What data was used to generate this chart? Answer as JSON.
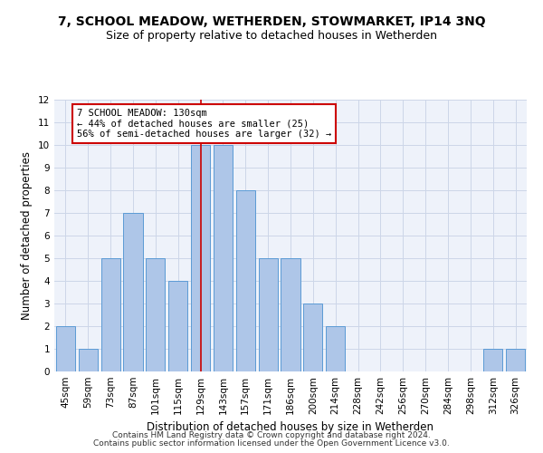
{
  "title": "7, SCHOOL MEADOW, WETHERDEN, STOWMARKET, IP14 3NQ",
  "subtitle": "Size of property relative to detached houses in Wetherden",
  "xlabel": "Distribution of detached houses by size in Wetherden",
  "ylabel": "Number of detached properties",
  "categories": [
    "45sqm",
    "59sqm",
    "73sqm",
    "87sqm",
    "101sqm",
    "115sqm",
    "129sqm",
    "143sqm",
    "157sqm",
    "171sqm",
    "186sqm",
    "200sqm",
    "214sqm",
    "228sqm",
    "242sqm",
    "256sqm",
    "270sqm",
    "284sqm",
    "298sqm",
    "312sqm",
    "326sqm"
  ],
  "values": [
    2,
    1,
    5,
    7,
    5,
    4,
    10,
    10,
    8,
    5,
    5,
    3,
    2,
    0,
    0,
    0,
    0,
    0,
    0,
    1,
    1
  ],
  "bar_color": "#aec6e8",
  "bar_edge_color": "#5b9bd5",
  "red_line_index": 6,
  "annotation_text": "7 SCHOOL MEADOW: 130sqm\n← 44% of detached houses are smaller (25)\n56% of semi-detached houses are larger (32) →",
  "annotation_box_color": "#ffffff",
  "annotation_box_edge_color": "#cc0000",
  "ylim": [
    0,
    12
  ],
  "yticks": [
    0,
    1,
    2,
    3,
    4,
    5,
    6,
    7,
    8,
    9,
    10,
    11,
    12
  ],
  "grid_color": "#ccd6e8",
  "background_color": "#eef2fa",
  "footer_line1": "Contains HM Land Registry data © Crown copyright and database right 2024.",
  "footer_line2": "Contains public sector information licensed under the Open Government Licence v3.0.",
  "title_fontsize": 10,
  "subtitle_fontsize": 9,
  "xlabel_fontsize": 8.5,
  "ylabel_fontsize": 8.5,
  "tick_fontsize": 7.5,
  "annotation_fontsize": 7.5,
  "footer_fontsize": 6.5
}
